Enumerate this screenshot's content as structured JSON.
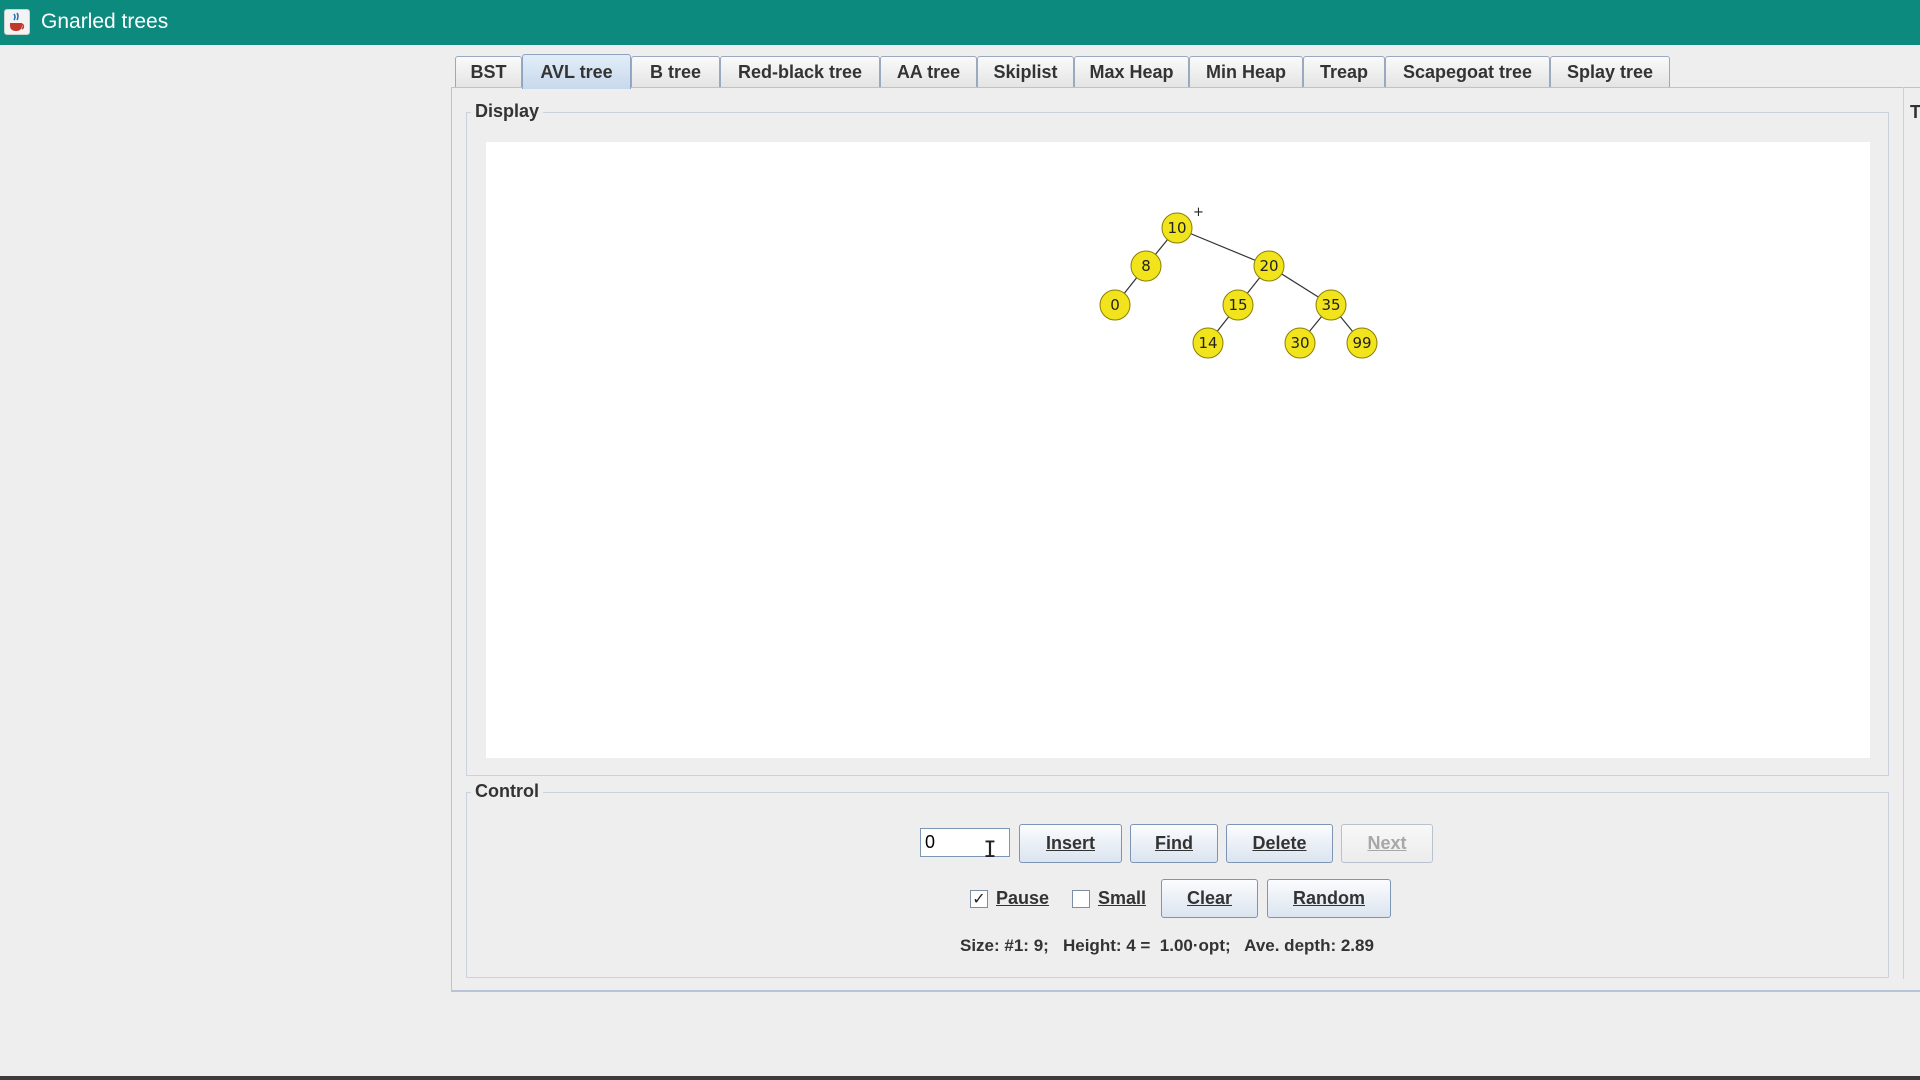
{
  "window": {
    "title": "Gnarled trees",
    "icon": "java-cup-icon",
    "titlebar_color": "#0d8a7e"
  },
  "tabs": [
    {
      "label": "BST",
      "active": false
    },
    {
      "label": "AVL tree",
      "active": true
    },
    {
      "label": "B tree",
      "active": false
    },
    {
      "label": "Red-black tree",
      "active": false
    },
    {
      "label": "AA tree",
      "active": false
    },
    {
      "label": "Skiplist",
      "active": false
    },
    {
      "label": "Max Heap",
      "active": false
    },
    {
      "label": "Min Heap",
      "active": false
    },
    {
      "label": "Treap",
      "active": false
    },
    {
      "label": "Scapegoat tree",
      "active": false
    },
    {
      "label": "Splay tree",
      "active": false
    }
  ],
  "display": {
    "label": "Display",
    "node_color": "#f2e41c",
    "tree": {
      "nodes": [
        {
          "id": "n10",
          "value": "10"
        },
        {
          "id": "n8",
          "value": "8"
        },
        {
          "id": "n20",
          "value": "20"
        },
        {
          "id": "n0",
          "value": "0"
        },
        {
          "id": "n15",
          "value": "15"
        },
        {
          "id": "n35",
          "value": "35"
        },
        {
          "id": "n14",
          "value": "14"
        },
        {
          "id": "n30",
          "value": "30"
        },
        {
          "id": "n99",
          "value": "99"
        }
      ],
      "edges": [
        [
          "n10",
          "n8"
        ],
        [
          "n10",
          "n20"
        ],
        [
          "n8",
          "n0"
        ],
        [
          "n20",
          "n15"
        ],
        [
          "n20",
          "n35"
        ],
        [
          "n15",
          "n14"
        ],
        [
          "n35",
          "n30"
        ],
        [
          "n35",
          "n99"
        ]
      ],
      "balance_marks": {
        "n10": "+"
      }
    }
  },
  "control": {
    "label": "Control",
    "input_value": "0",
    "buttons": {
      "insert": "Insert",
      "find": "Find",
      "delete": "Delete",
      "next": "Next",
      "clear": "Clear",
      "random": "Random"
    },
    "pause": {
      "label": "Pause",
      "checked": true
    },
    "small": {
      "label": "Small",
      "checked": false
    },
    "status": "Size: #1: 9;   Height: 4 =  1.00·opt;   Ave. depth: 2.89"
  },
  "right_panel": {
    "label": "T"
  }
}
